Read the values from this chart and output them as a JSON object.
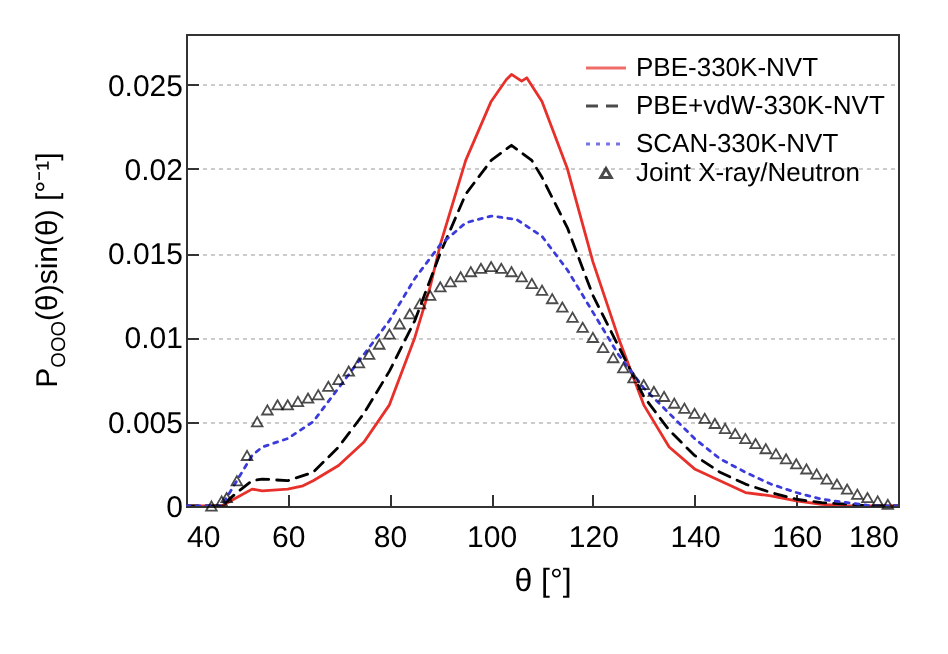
{
  "chart_data": {
    "type": "line",
    "xlabel": "θ [°]",
    "ylabel": "P$_{OOO}$(θ)sin(θ) [°⁻¹]",
    "xlim": [
      40,
      180
    ],
    "xticks": [
      40,
      60,
      80,
      100,
      120,
      140,
      160,
      180
    ],
    "ylim": [
      0,
      0.028
    ],
    "yticks": [
      0,
      0.005,
      0.01,
      0.015,
      0.02,
      0.025
    ],
    "grid": "y",
    "legend": "top right",
    "series": [
      {
        "name": "PBE-330K-NVT",
        "line_style": "solid",
        "color": "#e8302a",
        "x": [
          40,
          47,
          50,
          53,
          55,
          60,
          63,
          65,
          70,
          75,
          80,
          85,
          88,
          90,
          95,
          100,
          103,
          104,
          106,
          107,
          110,
          115,
          120,
          125,
          130,
          135,
          140,
          145,
          150,
          155,
          160,
          165,
          170,
          180
        ],
        "values": [
          0,
          0,
          0.0005,
          0.001,
          0.0009,
          0.001,
          0.0012,
          0.0015,
          0.0024,
          0.0038,
          0.006,
          0.01,
          0.013,
          0.0155,
          0.0205,
          0.024,
          0.0253,
          0.0256,
          0.0252,
          0.0254,
          0.024,
          0.02,
          0.0145,
          0.01,
          0.006,
          0.0035,
          0.0022,
          0.0015,
          0.0008,
          0.0006,
          0.0003,
          0.0001,
          0,
          0
        ]
      },
      {
        "name": "PBE+vdW-330K-NVT",
        "line_style": "dashed",
        "color": "#000000",
        "x": [
          40,
          47,
          50,
          53,
          55,
          60,
          65,
          70,
          75,
          80,
          85,
          90,
          95,
          100,
          104,
          108,
          110,
          115,
          120,
          125,
          130,
          135,
          140,
          145,
          150,
          155,
          160,
          165,
          170,
          175,
          180
        ],
        "values": [
          0,
          0,
          0.0008,
          0.0015,
          0.0016,
          0.0015,
          0.002,
          0.0035,
          0.0055,
          0.008,
          0.011,
          0.015,
          0.0185,
          0.0205,
          0.0214,
          0.0205,
          0.0195,
          0.0165,
          0.0125,
          0.0095,
          0.0065,
          0.0045,
          0.003,
          0.002,
          0.0013,
          0.0008,
          0.0004,
          0.0002,
          0.0001,
          0,
          0
        ]
      },
      {
        "name": "SCAN-330K-NVT",
        "line_style": "dotted",
        "color": "#3b3bdc",
        "x": [
          40,
          47,
          50,
          53,
          55,
          60,
          65,
          70,
          75,
          80,
          85,
          90,
          95,
          100,
          105,
          110,
          115,
          120,
          125,
          130,
          135,
          140,
          145,
          150,
          155,
          160,
          165,
          170,
          175,
          180
        ],
        "values": [
          0,
          0,
          0.0015,
          0.003,
          0.0035,
          0.004,
          0.005,
          0.007,
          0.009,
          0.011,
          0.0135,
          0.0155,
          0.0168,
          0.0172,
          0.017,
          0.016,
          0.014,
          0.0115,
          0.009,
          0.007,
          0.0055,
          0.004,
          0.0028,
          0.002,
          0.0013,
          0.0008,
          0.0004,
          0.0002,
          0,
          0
        ]
      },
      {
        "name": "Joint X-ray/Neutron",
        "type": "scatter",
        "marker": "triangle",
        "color": "#000000",
        "x": [
          45,
          47,
          48,
          50,
          52,
          54,
          56,
          58,
          60,
          62,
          64,
          66,
          68,
          70,
          72,
          74,
          76,
          78,
          80,
          82,
          84,
          86,
          88,
          90,
          92,
          94,
          96,
          98,
          100,
          102,
          104,
          106,
          108,
          110,
          112,
          114,
          116,
          118,
          120,
          122,
          124,
          126,
          128,
          130,
          132,
          134,
          136,
          138,
          140,
          142,
          144,
          146,
          148,
          150,
          152,
          154,
          156,
          158,
          160,
          162,
          164,
          166,
          168,
          170,
          172,
          174,
          176,
          178
        ],
        "values": [
          0,
          0.0003,
          0.0005,
          0.0015,
          0.003,
          0.005,
          0.0057,
          0.006,
          0.006,
          0.0062,
          0.0064,
          0.0066,
          0.0071,
          0.0075,
          0.008,
          0.0085,
          0.009,
          0.0096,
          0.0102,
          0.0108,
          0.0114,
          0.012,
          0.0125,
          0.013,
          0.0133,
          0.0136,
          0.0139,
          0.0141,
          0.0142,
          0.0141,
          0.0139,
          0.0136,
          0.0132,
          0.0128,
          0.0123,
          0.0118,
          0.0112,
          0.0106,
          0.01,
          0.0094,
          0.0088,
          0.0082,
          0.0076,
          0.0072,
          0.0068,
          0.0065,
          0.0061,
          0.0058,
          0.0055,
          0.0052,
          0.0049,
          0.0046,
          0.0043,
          0.004,
          0.0037,
          0.0034,
          0.0031,
          0.0028,
          0.0025,
          0.0022,
          0.0019,
          0.0016,
          0.0013,
          0.001,
          0.0007,
          0.0005,
          0.0003,
          0.0001
        ]
      }
    ]
  }
}
